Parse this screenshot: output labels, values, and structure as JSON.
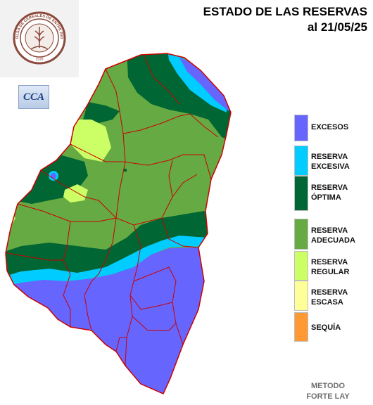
{
  "header": {
    "title_line1": "ESTADO DE LAS RESERVAS",
    "title_line2": "al 21/05/25"
  },
  "logo": {
    "icon": "bolsa-cereales-seal-icon",
    "seal_text": "BOLSA DE CEREALES DE ENTRE RIOS",
    "year_text": "1978"
  },
  "cca": {
    "label": "CCA",
    "icon": "cca-cloud-logo-icon"
  },
  "legend": [
    {
      "label": "EXCESOS",
      "color": "#6666ff"
    },
    {
      "label": "RESERVA\nEXCESIVA",
      "color": "#00ccff"
    },
    {
      "label": "RESERVA\nÓPTIMA",
      "color": "#006633"
    },
    {
      "label": "RESERVA\nADECUADA",
      "color": "#66aa44"
    },
    {
      "label": "RESERVA\nREGULAR",
      "color": "#ccff66"
    },
    {
      "label": "RESERVA\nESCASA",
      "color": "#ffff99"
    },
    {
      "label": "SEQUÍA",
      "color": "#ff9933"
    }
  ],
  "footer": {
    "method": "METODO\nFORTE LAY"
  },
  "colors": {
    "boundary": "#cc0000",
    "excesos": "#6666ff",
    "excesiva": "#00ccff",
    "optima": "#006633",
    "adecuada": "#66aa44",
    "regular": "#ccff66"
  }
}
